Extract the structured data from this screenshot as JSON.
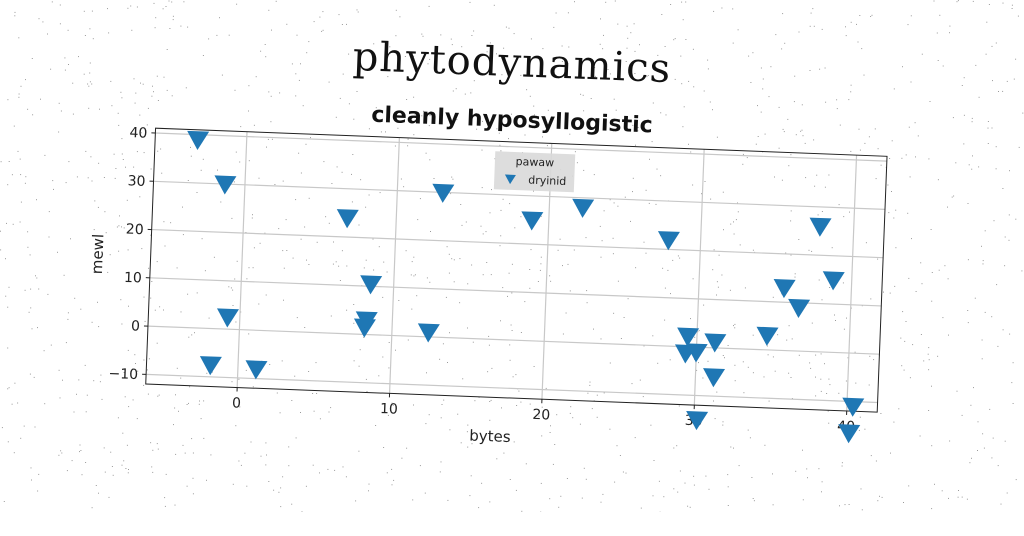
{
  "header": {
    "title": "phytodynamics"
  },
  "chart_data": {
    "type": "scatter",
    "title": "cleanly hyposyllogistic",
    "xlabel": "bytes",
    "ylabel": "mewl",
    "xlim": [
      -6,
      42
    ],
    "ylim": [
      -12,
      41
    ],
    "xticks": [
      0,
      10,
      20,
      30,
      40
    ],
    "yticks": [
      -10,
      0,
      10,
      20,
      30,
      40
    ],
    "grid": true,
    "legend": {
      "title": "pawaw",
      "position": "top-center"
    },
    "colors": {
      "series": "#1f77b4"
    },
    "series": [
      {
        "name": "dryinid",
        "marker": "triangle-down",
        "points": [
          [
            -3.2,
            39
          ],
          [
            -1.3,
            30
          ],
          [
            -0.8,
            2.5
          ],
          [
            -1.8,
            -7.5
          ],
          [
            1.2,
            -8
          ],
          [
            6.8,
            24
          ],
          [
            8.5,
            10.5
          ],
          [
            8.3,
            3
          ],
          [
            8.2,
            1.5
          ],
          [
            12.4,
            1
          ],
          [
            13.0,
            30
          ],
          [
            18.9,
            25
          ],
          [
            22.2,
            28
          ],
          [
            27.9,
            22
          ],
          [
            29.4,
            2.2
          ],
          [
            29.3,
            -1.3
          ],
          [
            30.0,
            -1
          ],
          [
            30.2,
            -15
          ],
          [
            31.2,
            1.2
          ],
          [
            31.2,
            -6
          ],
          [
            34.6,
            3
          ],
          [
            35.6,
            13
          ],
          [
            36.6,
            9
          ],
          [
            37.8,
            26
          ],
          [
            38.8,
            15
          ],
          [
            40.4,
            -11
          ],
          [
            40.2,
            -16.5
          ]
        ]
      }
    ]
  }
}
